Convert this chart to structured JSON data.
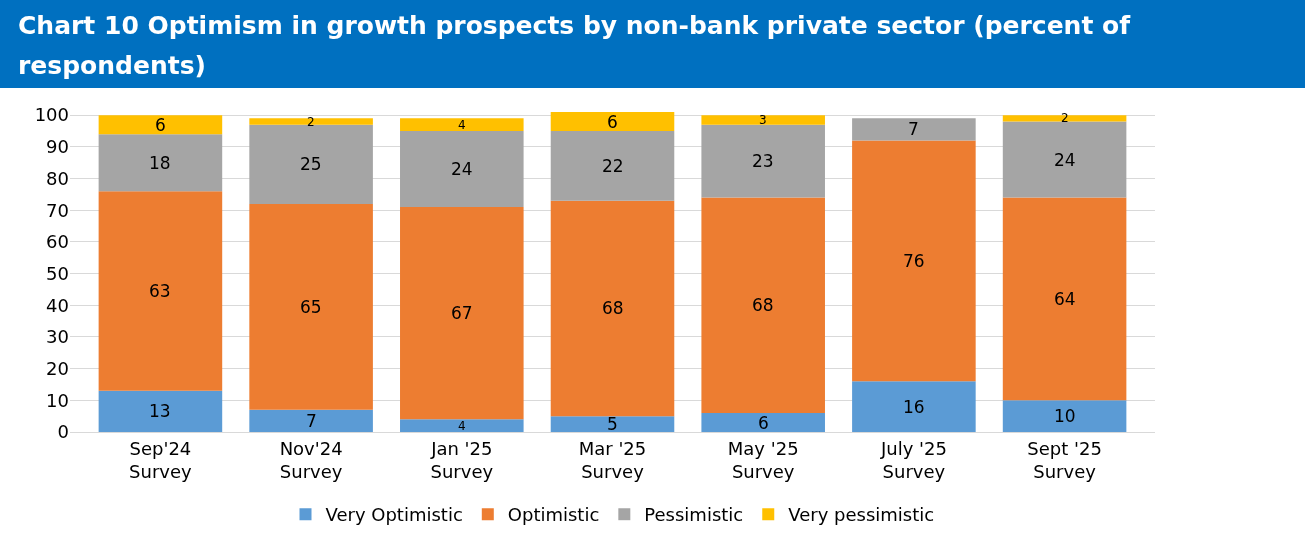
{
  "chart_data": {
    "type": "bar",
    "title": "Chart 10 Optimism in growth prospects by non-bank private sector (percent of respondents)",
    "categories": [
      "Sep'24\nSurvey",
      "Nov'24\nSurvey",
      "Jan '25\nSurvey",
      "Mar '25\nSurvey",
      "May '25\nSurvey",
      "July '25\nSurvey",
      "Sept '25\nSurvey"
    ],
    "series": [
      {
        "name": "Very Optimistic",
        "color": "#5b9bd5",
        "values": [
          13,
          7,
          4,
          5,
          6,
          16,
          10
        ]
      },
      {
        "name": "Optimistic",
        "color": "#ed7d31",
        "values": [
          63,
          65,
          67,
          68,
          68,
          76,
          64
        ]
      },
      {
        "name": "Pessimistic",
        "color": "#a5a5a5",
        "values": [
          18,
          25,
          24,
          22,
          23,
          7,
          24
        ]
      },
      {
        "name": "Very pessimistic",
        "color": "#ffc000",
        "values": [
          6,
          2,
          4,
          6,
          3,
          null,
          2
        ]
      }
    ],
    "stacked": true,
    "data_labels": true,
    "ylim": [
      0,
      101
    ],
    "yticks": [
      0,
      10,
      20,
      30,
      40,
      50,
      60,
      70,
      80,
      90,
      100
    ],
    "grid": "y",
    "legend": "bottom"
  }
}
